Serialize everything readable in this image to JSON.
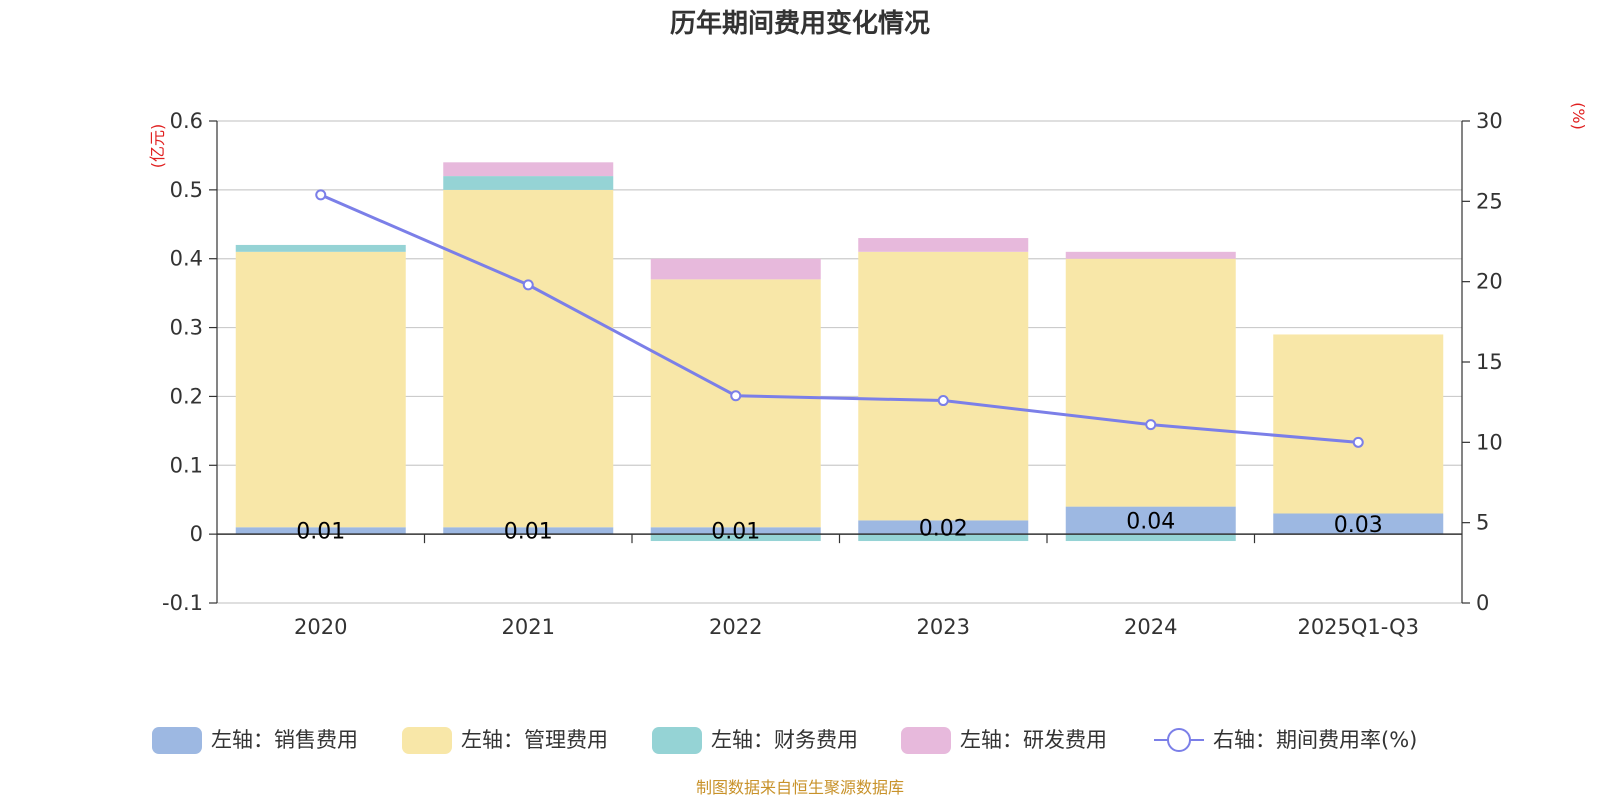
{
  "chart_data": {
    "type": "bar",
    "stacked": true,
    "title": "历年期间费用变化情况",
    "categories": [
      "2020",
      "2021",
      "2022",
      "2023",
      "2024",
      "2025Q1-Q3"
    ],
    "left_axis": {
      "unit": "(亿元)",
      "ylim": [
        -0.1,
        0.6
      ],
      "ticks": [
        -0.1,
        0,
        0.1,
        0.2,
        0.3,
        0.4,
        0.5,
        0.6
      ],
      "tick_labels": [
        "-0.1",
        "0",
        "0.1",
        "0.2",
        "0.3",
        "0.4",
        "0.5",
        "0.6"
      ]
    },
    "right_axis": {
      "unit": "(%)",
      "ylim": [
        0,
        30
      ],
      "ticks": [
        0,
        5,
        10,
        15,
        20,
        25,
        30
      ],
      "tick_labels": [
        "0",
        "5",
        "10",
        "15",
        "20",
        "25",
        "30"
      ]
    },
    "series": [
      {
        "name": "左轴：销售费用",
        "axis": "left",
        "color": "#9db8e2",
        "values": [
          0.01,
          0.01,
          0.01,
          0.02,
          0.04,
          0.03
        ],
        "labels": [
          "0.01",
          "0.01",
          "0.01",
          "0.02",
          "0.04",
          "0.03"
        ]
      },
      {
        "name": "左轴：管理费用",
        "axis": "left",
        "color": "#f8e7a8",
        "values": [
          0.4,
          0.49,
          0.36,
          0.39,
          0.36,
          0.26
        ]
      },
      {
        "name": "左轴：财务费用",
        "axis": "left",
        "color": "#95d3d5",
        "values": [
          0.01,
          0.02,
          -0.01,
          -0.01,
          -0.01,
          0
        ]
      },
      {
        "name": "左轴：研发费用",
        "axis": "left",
        "color": "#e7b9dc",
        "values": [
          0,
          0.02,
          0.03,
          0.02,
          0.01,
          0
        ]
      },
      {
        "name": "右轴：期间费用率(%)",
        "axis": "right",
        "type": "line",
        "color": "#7b7fe8",
        "values": [
          25.4,
          19.8,
          12.9,
          12.6,
          11.1,
          10.0
        ]
      }
    ],
    "grid": true,
    "legend_position": "bottom"
  },
  "source": "制图数据来自恒生聚源数据库"
}
